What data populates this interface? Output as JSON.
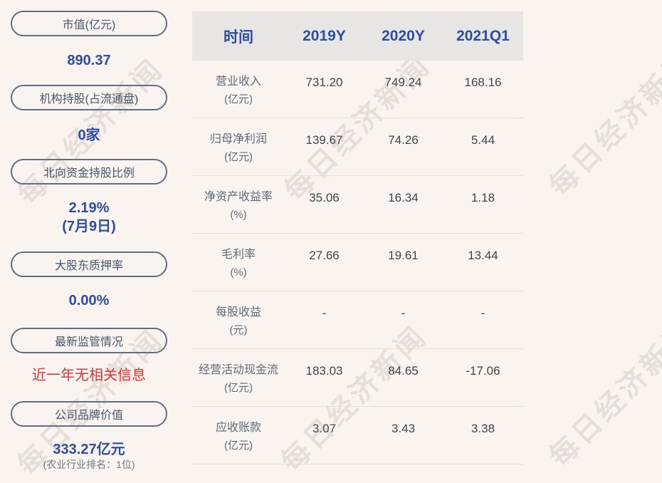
{
  "watermark": {
    "text": "每日经济新闻"
  },
  "colors": {
    "background": "#faf4f1",
    "accent_blue": "#2e4d9e",
    "alert_red": "#df3434",
    "pill_border": "#5f6e80",
    "table_header_bg": "#e7e6e5",
    "row_divider": "#e5e0dc",
    "label_gray": "#5d6b79"
  },
  "sidebar": {
    "items": [
      {
        "label": "市值(亿元)",
        "value": "890.37"
      },
      {
        "label": "机构持股(占流通盘)",
        "value": "0家"
      },
      {
        "label": "北向资金持股比例",
        "value": "2.19%",
        "subvalue": "(7月9日)"
      },
      {
        "label": "大股东质押率",
        "value": "0.00%"
      },
      {
        "label": "最新监管情况",
        "value": "近一年无相关信息"
      },
      {
        "label": "公司品牌价值",
        "value": "333.27亿元",
        "subvalue": "(农业行业排名：1位)"
      }
    ]
  },
  "table": {
    "header": {
      "col0": "时间",
      "col1": "2019Y",
      "col2": "2020Y",
      "col3": "2021Q1"
    },
    "rows": [
      {
        "name": "营业收入",
        "unit": "(亿元)",
        "v1": "731.20",
        "v2": "749.24",
        "v3": "168.16"
      },
      {
        "name": "归母净利润",
        "unit": "(亿元)",
        "v1": "139.67",
        "v2": "74.26",
        "v3": "5.44"
      },
      {
        "name": "净资产收益率",
        "unit": "(%)",
        "v1": "35.06",
        "v2": "16.34",
        "v3": "1.18"
      },
      {
        "name": "毛利率",
        "unit": "(%)",
        "v1": "27.66",
        "v2": "19.61",
        "v3": "13.44"
      },
      {
        "name": "每股收益",
        "unit": "(元)",
        "v1": "-",
        "v2": "-",
        "v3": "-"
      },
      {
        "name": "经营活动现金流",
        "unit": "(亿元)",
        "v1": "183.03",
        "v2": "84.65",
        "v3": "-17.06"
      },
      {
        "name": "应收账款",
        "unit": "(亿元)",
        "v1": "3.07",
        "v2": "3.43",
        "v3": "3.38"
      }
    ]
  }
}
